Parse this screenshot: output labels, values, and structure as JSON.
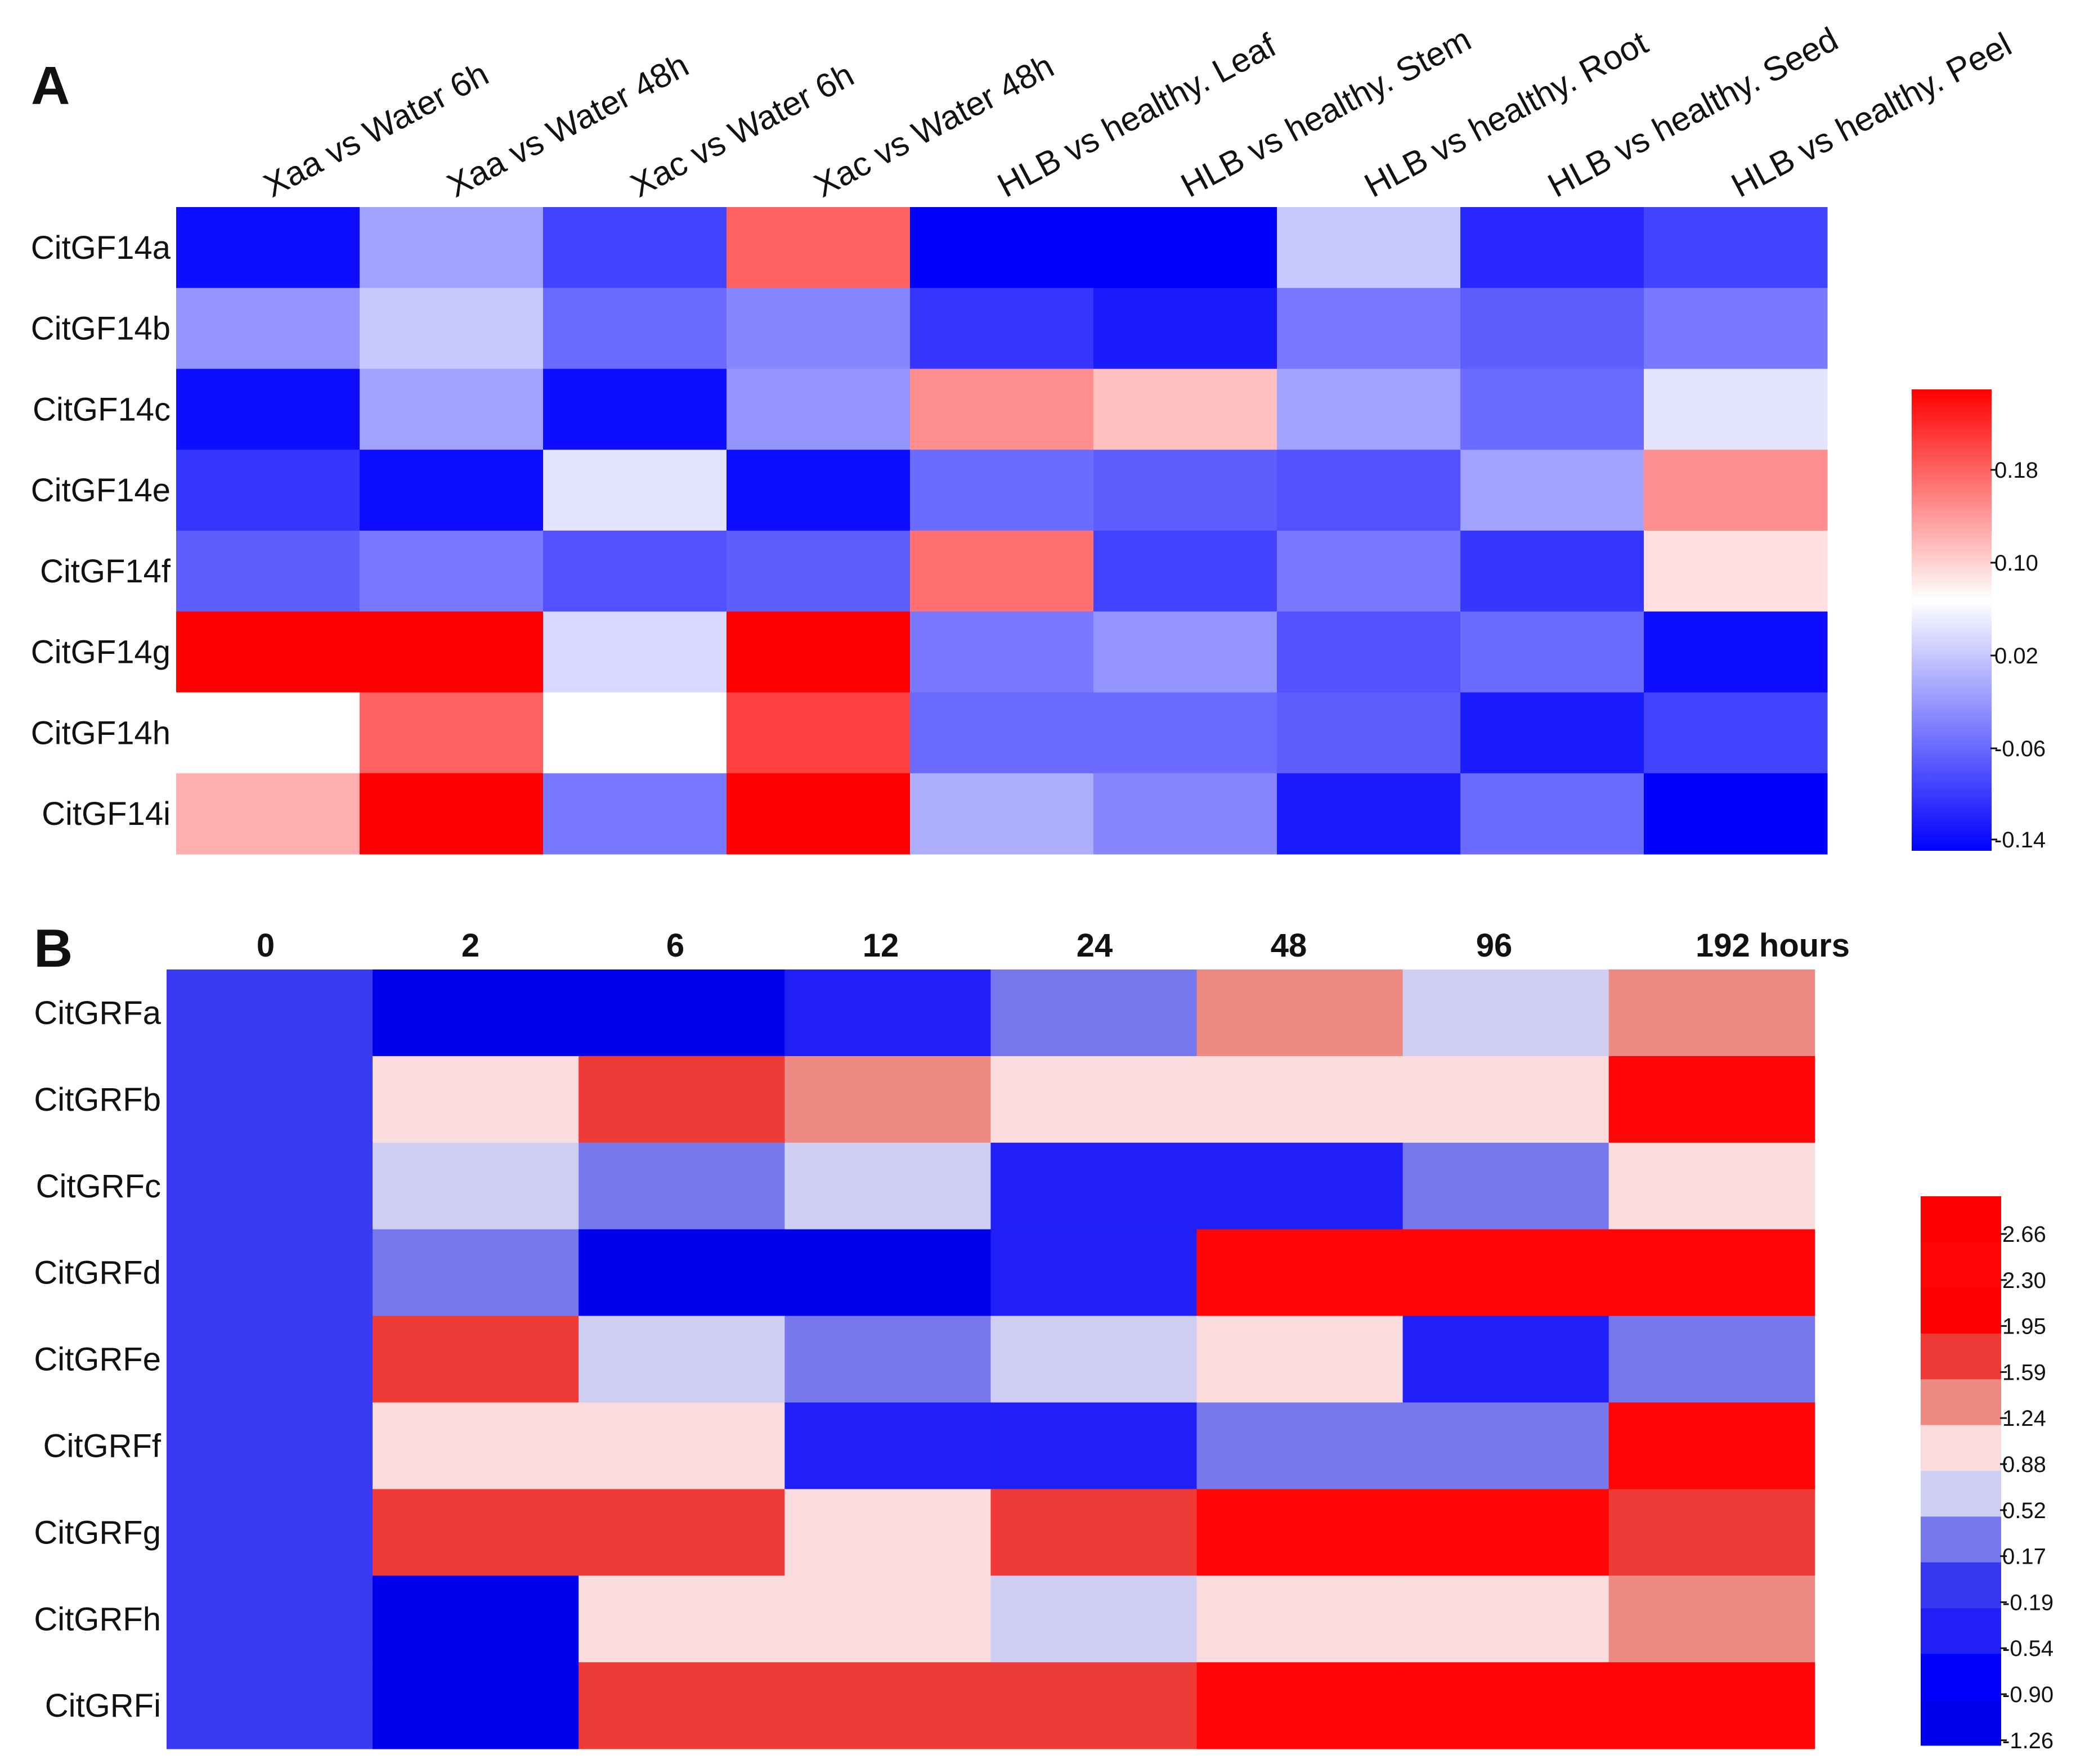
{
  "chart_data": [
    {
      "type": "heatmap",
      "panel_label": "A",
      "columns": [
        "Xaa vs Water 6h",
        "Xaa vs Water 48h",
        "Xac vs Water 6h",
        "Xac vs Water 48h",
        "HLB vs healthy. Leaf",
        "HLB vs healthy. Stem",
        "HLB vs healthy. Root",
        "HLB vs healthy. Seed",
        "HLB vs healthy. Peel"
      ],
      "rows": [
        "CitGF14a",
        "CitGF14b",
        "CitGF14c",
        "CitGF14e",
        "CitGF14f",
        "CitGF14g",
        "CitGF14h",
        "CitGF14i"
      ],
      "values": [
        [
          -0.13,
          -0.02,
          -0.09,
          0.15,
          -0.14,
          -0.14,
          0.01,
          -0.11,
          -0.09
        ],
        [
          -0.03,
          0.01,
          -0.06,
          -0.04,
          -0.1,
          -0.12,
          -0.05,
          -0.07,
          -0.05
        ],
        [
          -0.13,
          -0.02,
          -0.13,
          -0.03,
          0.12,
          0.09,
          -0.02,
          -0.06,
          0.03
        ],
        [
          -0.1,
          -0.13,
          0.03,
          -0.13,
          -0.06,
          -0.07,
          -0.08,
          -0.02,
          0.12
        ],
        [
          -0.07,
          -0.05,
          -0.08,
          -0.07,
          0.14,
          -0.09,
          -0.05,
          -0.1,
          0.07
        ],
        [
          0.21,
          0.21,
          0.02,
          0.21,
          -0.05,
          -0.03,
          -0.08,
          -0.06,
          -0.13
        ],
        [
          0.05,
          0.15,
          0.05,
          0.17,
          -0.06,
          -0.06,
          -0.07,
          -0.12,
          -0.09
        ],
        [
          0.1,
          0.21,
          -0.05,
          0.21,
          -0.01,
          -0.04,
          -0.12,
          -0.06,
          -0.14
        ]
      ],
      "color_scale": {
        "min": -0.14,
        "mid": 0.05,
        "max": 0.21,
        "low_color": "#0000ff",
        "mid_color": "#ffffff",
        "high_color": "#ff0000"
      },
      "colorbar_ticks": [
        0.18,
        0.1,
        0.02,
        -0.06,
        -0.14
      ],
      "colorbar_tick_labels": [
        "0.18",
        "0.10",
        "0.02",
        "-0.06",
        "-0.14"
      ]
    },
    {
      "type": "heatmap",
      "panel_label": "B",
      "columns": [
        "0",
        "2",
        "6",
        "12",
        "24",
        "48",
        "96",
        "192 hours"
      ],
      "rows": [
        "CitGRFa",
        "CitGRFb",
        "CitGRFc",
        "CitGRFd",
        "CitGRFe",
        "CitGRFf",
        "CitGRFg",
        "CitGRFh",
        "CitGRFi"
      ],
      "values": [
        [
          0,
          -1.0,
          -1.0,
          -0.3,
          0.3,
          1.4,
          0.6,
          1.4
        ],
        [
          0,
          1.0,
          1.8,
          1.4,
          1.0,
          1.0,
          1.0,
          2.5
        ],
        [
          0,
          0.6,
          0.3,
          0.6,
          -0.3,
          -0.3,
          0.3,
          1.0
        ],
        [
          0,
          0.3,
          -1.0,
          -1.0,
          -0.3,
          2.5,
          2.5,
          2.5
        ],
        [
          0,
          1.8,
          0.6,
          0.3,
          0.6,
          1.0,
          -0.3,
          0.3
        ],
        [
          0,
          1.0,
          1.0,
          -0.3,
          -0.3,
          0.3,
          0.3,
          2.5
        ],
        [
          0,
          1.8,
          1.8,
          1.0,
          1.8,
          2.5,
          2.5,
          1.8
        ],
        [
          0,
          -1.0,
          1.0,
          1.0,
          0.6,
          1.0,
          1.0,
          1.4
        ],
        [
          0,
          -1.0,
          1.8,
          1.8,
          1.8,
          2.5,
          2.5,
          2.5
        ]
      ],
      "color_steps": [
        {
          "from": -1.26,
          "to": -0.9,
          "color": "#0000ee"
        },
        {
          "from": -0.9,
          "to": -0.54,
          "color": "#0000ff"
        },
        {
          "from": -0.54,
          "to": -0.19,
          "color": "#1f1ff6"
        },
        {
          "from": -0.19,
          "to": 0.17,
          "color": "#3838f2"
        },
        {
          "from": 0.17,
          "to": 0.52,
          "color": "#7777ee"
        },
        {
          "from": 0.52,
          "to": 0.88,
          "color": "#cfcff4"
        },
        {
          "from": 0.88,
          "to": 1.24,
          "color": "#fbdcdc"
        },
        {
          "from": 1.24,
          "to": 1.59,
          "color": "#ee8a84"
        },
        {
          "from": 1.59,
          "to": 1.95,
          "color": "#ee3b37"
        },
        {
          "from": 1.95,
          "to": 2.3,
          "color": "#ff0000"
        },
        {
          "from": 2.3,
          "to": 2.66,
          "color": "#ff0505"
        },
        {
          "from": 2.66,
          "to": 3.0,
          "color": "#ff0000"
        }
      ],
      "first_column_color": "#3a3af2",
      "colorbar_ticks": [
        2.66,
        2.3,
        1.95,
        1.59,
        1.24,
        0.88,
        0.52,
        0.17,
        -0.19,
        -0.54,
        -0.9,
        -1.26
      ],
      "colorbar_tick_labels": [
        "2.66",
        "2.30",
        "1.95",
        "1.59",
        "1.24",
        "0.88",
        "0.52",
        "0.17",
        "-0.19",
        "-0.54",
        "-0.90",
        "-1.26"
      ]
    }
  ]
}
